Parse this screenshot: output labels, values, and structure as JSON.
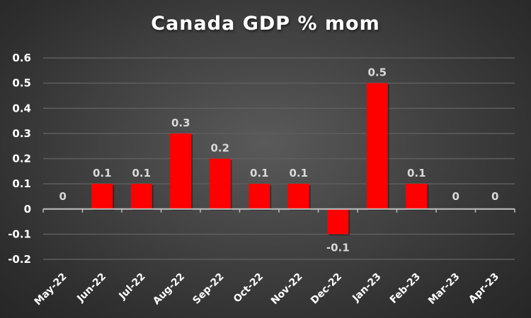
{
  "chart_data": {
    "type": "bar",
    "title": "Canada GDP % mom",
    "xlabel": "",
    "ylabel": "",
    "categories": [
      "May-22",
      "Jun-22",
      "Jul-22",
      "Aug-22",
      "Sep-22",
      "Oct-22",
      "Nov-22",
      "Dec-22",
      "Jan-23",
      "Feb-23",
      "Mar-23",
      "Apr-23"
    ],
    "values": [
      0,
      0.1,
      0.1,
      0.3,
      0.2,
      0.1,
      0.1,
      -0.1,
      0.5,
      0.1,
      0,
      0
    ],
    "data_labels": [
      "0",
      "0.1",
      "0.1",
      "0.3",
      "0.2",
      "0.1",
      "0.1",
      "-0.1",
      "0.5",
      "0.1",
      "0",
      "0"
    ],
    "ylim": [
      -0.2,
      0.6
    ],
    "yticks": [
      0.6,
      0.5,
      0.4,
      0.3,
      0.2,
      0.1,
      0,
      -0.1,
      -0.2
    ],
    "ytick_labels": [
      "0.6",
      "0.5",
      "0.4",
      "0.3",
      "0.2",
      "0.1",
      "0",
      "-0.1",
      "-0.2"
    ],
    "grid": true,
    "legend": "none",
    "colors": {
      "bar": "#FF0000",
      "grid": "#5e5e5e",
      "axis": "#bfbfbf",
      "data_label": "#d9d9d9",
      "tick_label": "#ffffff"
    }
  }
}
